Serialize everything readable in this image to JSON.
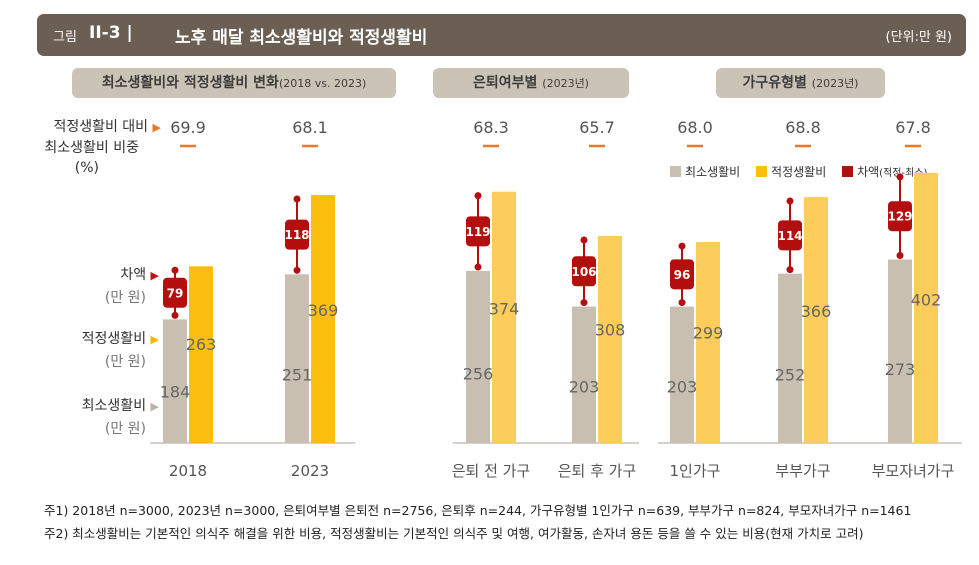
{
  "title": {
    "fig_label": "그림",
    "fig_number": "II-3 |",
    "text": "노후 매달 최소생활비와 적정생활비",
    "unit": "(단위:만 원)"
  },
  "panels": [
    {
      "title": "최소생활비와 적정생활비 변화",
      "sub": "(2018 vs. 2023)"
    },
    {
      "title": "은퇴여부별",
      "sub": "(2023년)"
    },
    {
      "title": "가구유형별",
      "sub": "(2023년)"
    }
  ],
  "side_labels": {
    "ratio_line1": "적정생활비 대비",
    "ratio_line2": "최소생활비 비중",
    "ratio_unit": "(%)",
    "diff": "차액",
    "adequate": "적정생활비",
    "minimum": "최소생활비",
    "unit": "(만 원)",
    "arrow": "▶"
  },
  "legend": {
    "minimum": "최소생활비",
    "adequate": "적정생활비",
    "diff": "차액",
    "diff_sub": "(적정-최소)"
  },
  "colors": {
    "minimum": "#c9bfb1",
    "adequate_2018_2023": "#fcbf0f",
    "adequate_groups": "#fccd5a",
    "diff": "#b30f0f",
    "ratio_dash": "#e8792b",
    "side_arrow_diff": "#c0151b",
    "side_arrow_adequate": "#f7b500",
    "side_arrow_minimum": "#b8b0a5",
    "title_bar": "#6b5e53",
    "panel_tag": "#cbc3b6"
  },
  "chart_data": {
    "type": "bar",
    "title": "노후 매달 최소생활비와 적정생활비",
    "unit": "만 원",
    "series": [
      {
        "name": "최소생활비",
        "values": [
          184,
          251,
          256,
          203,
          203,
          252,
          273
        ]
      },
      {
        "name": "적정생활비",
        "values": [
          263,
          369,
          374,
          308,
          299,
          366,
          402
        ]
      },
      {
        "name": "차액(적정-최소)",
        "values": [
          79,
          118,
          119,
          106,
          96,
          114,
          129
        ]
      }
    ],
    "categories": [
      "2018",
      "2023",
      "은퇴 전 가구",
      "은퇴 후 가구",
      "1인가구",
      "부부가구",
      "부모자녀가구"
    ],
    "ratio_labels": [
      "69.9",
      "68.1",
      "68.3",
      "65.7",
      "68.0",
      "68.8",
      "67.8"
    ],
    "ylim": [
      0,
      430
    ]
  },
  "footnotes": [
    "주1) 2018년 n=3000, 2023년 n=3000, 은퇴여부별 은퇴전 n=2756, 은퇴후 n=244, 가구유형별 1인가구 n=639, 부부가구 n=824, 부모자녀가구 n=1461",
    "주2) 최소생활비는 기본적인 의식주 해결을 위한 비용,  적정생활비는 기본적인 의식주 및 여행, 여가활동, 손자녀 용돈 등을 쓸 수 있는 비용(현재 가치로 고려)"
  ]
}
